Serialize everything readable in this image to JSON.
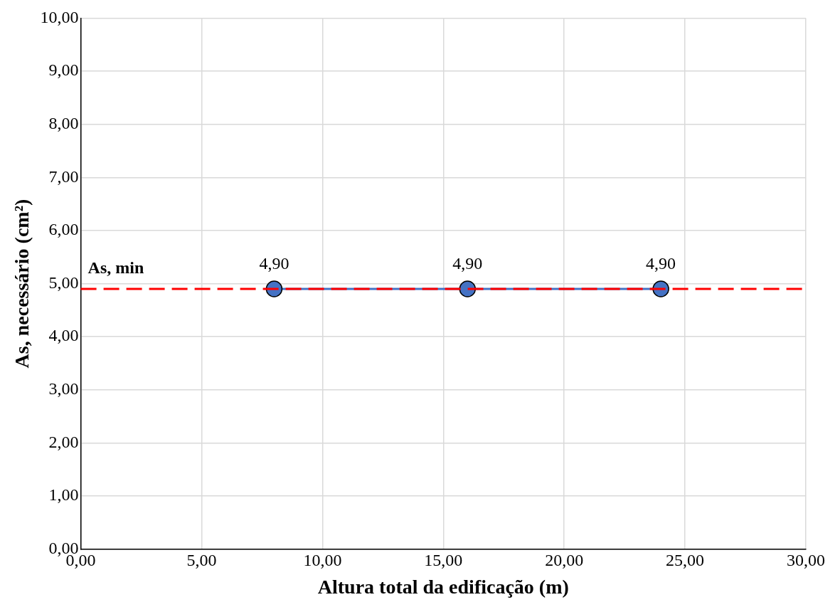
{
  "chart_data": {
    "type": "line",
    "xlabel": "Altura total da edificação (m)",
    "ylabel": "As, necessário (cm²)",
    "series": [
      {
        "color": "#4472c4",
        "x": [
          8,
          16,
          24
        ],
        "values": [
          4.9,
          4.9,
          4.9
        ],
        "value_labels": [
          "4,90",
          "4,90",
          "4,90"
        ]
      }
    ],
    "xlim": [
      0,
      30
    ],
    "xticks": [
      {
        "value": 0,
        "label": "0,00"
      },
      {
        "value": 5,
        "label": "5,00"
      },
      {
        "value": 10,
        "label": "10,00"
      },
      {
        "value": 15,
        "label": "15,00"
      },
      {
        "value": 20,
        "label": "20,00"
      },
      {
        "value": 25,
        "label": "25,00"
      },
      {
        "value": 30,
        "label": "30,00"
      }
    ],
    "ylim": [
      0,
      10
    ],
    "yticks": [
      {
        "value": 0,
        "label": "0,00"
      },
      {
        "value": 1,
        "label": "1,00"
      },
      {
        "value": 2,
        "label": "2,00"
      },
      {
        "value": 3,
        "label": "3,00"
      },
      {
        "value": 4,
        "label": "4,00"
      },
      {
        "value": 5,
        "label": "5,00"
      },
      {
        "value": 6,
        "label": "6,00"
      },
      {
        "value": 7,
        "label": "7,00"
      },
      {
        "value": 8,
        "label": "8,00"
      },
      {
        "value": 9,
        "label": "9,00"
      },
      {
        "value": 10,
        "label": "10,00"
      }
    ],
    "ref_lines": [
      {
        "axis": "y",
        "value": 4.9,
        "label": "As, min",
        "color": "#ff0000",
        "line_style": "dashed"
      }
    ],
    "grid": true,
    "legend": false,
    "marker": "circle",
    "line_style": "solid"
  }
}
